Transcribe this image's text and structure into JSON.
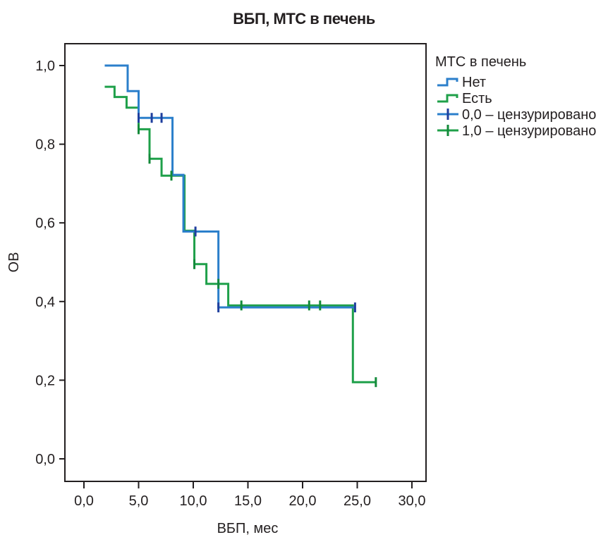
{
  "chart_data": {
    "type": "line",
    "subtype": "kaplan-meier step",
    "title": "ВБП, МТС в печень",
    "xlabel": "ВБП, мес",
    "ylabel": "ОВ",
    "xlim": [
      -1.8,
      31.2
    ],
    "ylim": [
      -0.055,
      1.055
    ],
    "xticks": [
      0,
      5,
      10,
      15,
      20,
      25,
      30
    ],
    "xtick_labels": [
      "0,0",
      "5,0",
      "10,0",
      "15,0",
      "20,0",
      "25,0",
      "30,0"
    ],
    "yticks": [
      0,
      0.2,
      0.4,
      0.6,
      0.8,
      1.0
    ],
    "ytick_labels": [
      "0,0",
      "0,2",
      "0,4",
      "0,6",
      "0,8",
      "1,0"
    ],
    "grid": false,
    "legend": {
      "title": "МТС в печень",
      "placement": "right-outside-top",
      "entries": [
        {
          "label": "Нет",
          "kind": "step",
          "series": 0
        },
        {
          "label": "Есть",
          "kind": "step",
          "series": 1
        },
        {
          "label": "0,0 – цензурировано",
          "kind": "censor",
          "series": 0
        },
        {
          "label": "1,0 – цензурировано",
          "kind": "censor",
          "series": 1
        }
      ]
    },
    "series": [
      {
        "name": "Нет",
        "color": "#2b7fcb",
        "censor_color": "#1f3f9e",
        "steps": [
          {
            "t": 1.9,
            "s": 1.0
          },
          {
            "t": 4.0,
            "s": 0.935
          },
          {
            "t": 5.0,
            "s": 0.867
          },
          {
            "t": 8.1,
            "s": 0.722
          },
          {
            "t": 9.1,
            "s": 0.578
          },
          {
            "t": 12.3,
            "s": 0.385
          }
        ],
        "end_t": 24.8,
        "censored": [
          {
            "t": 5.0,
            "s": 0.867
          },
          {
            "t": 6.2,
            "s": 0.867
          },
          {
            "t": 7.1,
            "s": 0.867
          },
          {
            "t": 10.2,
            "s": 0.578
          },
          {
            "t": 12.3,
            "s": 0.385
          },
          {
            "t": 24.8,
            "s": 0.385
          }
        ]
      },
      {
        "name": "Есть",
        "color": "#1fa04a",
        "censor_color": "#138a3a",
        "steps": [
          {
            "t": 1.9,
            "s": 0.946
          },
          {
            "t": 2.8,
            "s": 0.92
          },
          {
            "t": 3.9,
            "s": 0.893
          },
          {
            "t": 5.0,
            "s": 0.838
          },
          {
            "t": 6.0,
            "s": 0.763
          },
          {
            "t": 7.1,
            "s": 0.72
          },
          {
            "t": 9.2,
            "s": 0.58
          },
          {
            "t": 10.1,
            "s": 0.495
          },
          {
            "t": 11.2,
            "s": 0.445
          },
          {
            "t": 13.2,
            "s": 0.39
          },
          {
            "t": 24.6,
            "s": 0.195
          }
        ],
        "end_t": 26.7,
        "censored": [
          {
            "t": 5.0,
            "s": 0.838
          },
          {
            "t": 6.0,
            "s": 0.763
          },
          {
            "t": 8.0,
            "s": 0.72
          },
          {
            "t": 10.1,
            "s": 0.495
          },
          {
            "t": 12.3,
            "s": 0.445
          },
          {
            "t": 14.4,
            "s": 0.39
          },
          {
            "t": 20.6,
            "s": 0.39
          },
          {
            "t": 21.6,
            "s": 0.39
          },
          {
            "t": 26.7,
            "s": 0.195
          }
        ]
      }
    ]
  }
}
